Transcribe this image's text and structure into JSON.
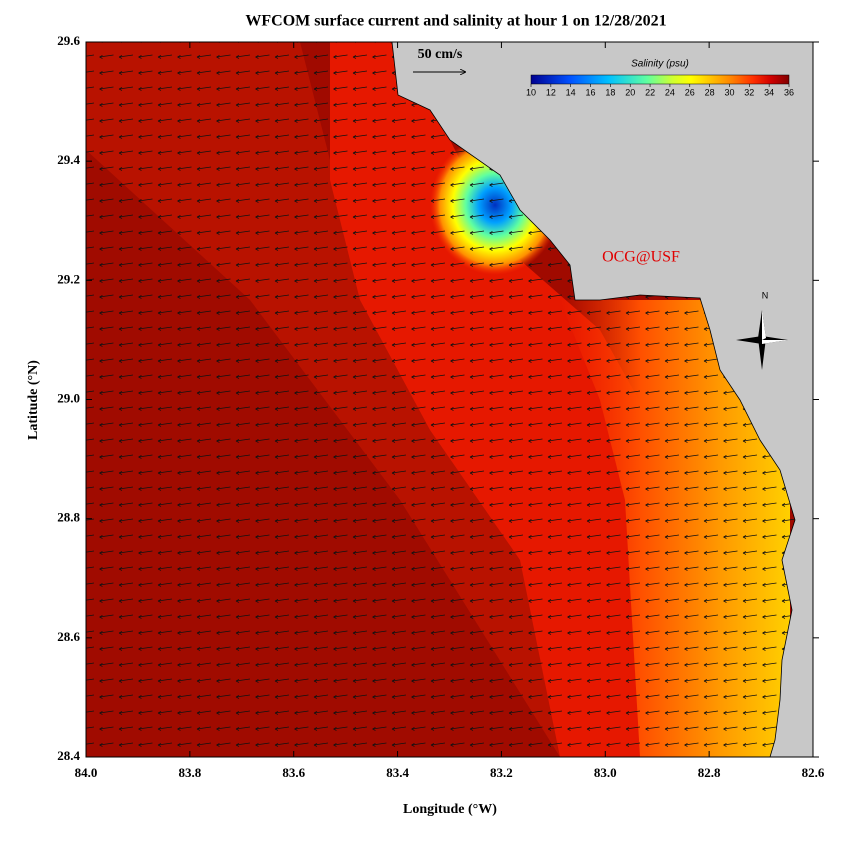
{
  "title": "WFCOM surface current and salinity at hour 1 on 12/28/2021",
  "x_axis": {
    "label": "Longitude (°W)",
    "lim": [
      84.0,
      82.6
    ],
    "ticks": [
      {
        "value": 84.0,
        "label": "84.0"
      },
      83.8,
      83.6,
      83.4,
      83.2,
      {
        "value": 83.0,
        "label": "83.0"
      },
      82.8,
      82.6
    ]
  },
  "y_axis": {
    "label": "Latitude (°N)",
    "lim": [
      28.4,
      29.6
    ],
    "ticks": [
      28.4,
      28.6,
      28.8,
      {
        "value": 29.0,
        "label": "29.0"
      },
      29.2,
      29.4,
      29.6
    ]
  },
  "colorbar": {
    "title": "Salinity (psu)",
    "lim": [
      10,
      36
    ],
    "ticks": [
      10,
      12,
      14,
      16,
      18,
      20,
      22,
      24,
      26,
      28,
      30,
      32,
      34,
      36
    ]
  },
  "scale_label": "50 cm/s",
  "credit": "OCG@USF",
  "compass": "N"
}
